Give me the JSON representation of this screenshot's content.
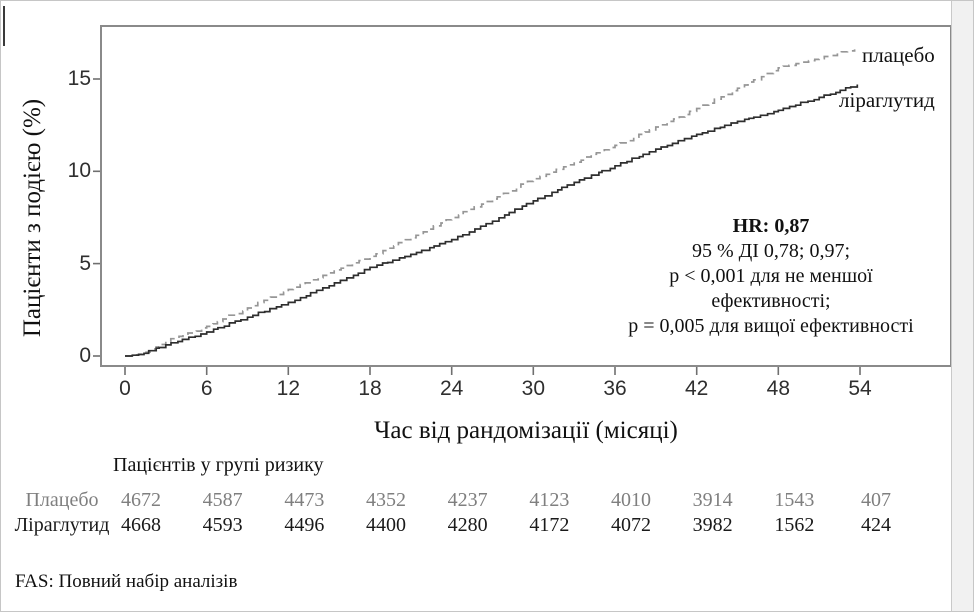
{
  "chart_data": {
    "type": "line",
    "title": "",
    "xlabel": "Час від рандомізації (місяці)",
    "ylabel": "Пацієнти з подією (%)",
    "xlim": [
      0,
      60.7
    ],
    "ylim": [
      0,
      17.9
    ],
    "x_ticks": [
      0,
      6,
      12,
      18,
      24,
      30,
      36,
      42,
      48,
      54
    ],
    "y_ticks": [
      0,
      5,
      10,
      15
    ],
    "grid": false,
    "legend_position": "right-of-curve-ends",
    "series": [
      {
        "name": "плацебо",
        "line_style": "dashed",
        "color": "#969696",
        "points": [
          [
            0,
            0
          ],
          [
            1,
            0.1
          ],
          [
            3,
            0.8
          ],
          [
            6,
            1.6
          ],
          [
            9,
            2.6
          ],
          [
            12,
            3.6
          ],
          [
            15,
            4.5
          ],
          [
            18,
            5.4
          ],
          [
            21,
            6.4
          ],
          [
            24,
            7.5
          ],
          [
            27,
            8.5
          ],
          [
            30,
            9.6
          ],
          [
            33,
            10.5
          ],
          [
            36,
            11.4
          ],
          [
            39,
            12.4
          ],
          [
            42,
            13.4
          ],
          [
            45,
            14.5
          ],
          [
            48,
            15.6
          ],
          [
            51,
            16.1
          ],
          [
            53.6,
            16.6
          ]
        ]
      },
      {
        "name": "ліраглутид",
        "line_style": "solid",
        "color": "#2e2e2e",
        "points": [
          [
            0,
            0
          ],
          [
            1,
            0.08
          ],
          [
            3,
            0.6
          ],
          [
            6,
            1.3
          ],
          [
            9,
            2.1
          ],
          [
            12,
            2.9
          ],
          [
            15,
            3.8
          ],
          [
            18,
            4.8
          ],
          [
            21,
            5.5
          ],
          [
            24,
            6.3
          ],
          [
            27,
            7.3
          ],
          [
            30,
            8.4
          ],
          [
            33,
            9.4
          ],
          [
            36,
            10.3
          ],
          [
            39,
            11.2
          ],
          [
            42,
            12.0
          ],
          [
            45,
            12.7
          ],
          [
            48,
            13.3
          ],
          [
            51,
            14.0
          ],
          [
            53.8,
            14.7
          ]
        ]
      }
    ]
  },
  "annotation": {
    "lines": [
      "HR: 0,87",
      "95 % ДІ 0,78; 0,97;",
      "p < 0,001 для не меншої",
      "ефективності;",
      "p = 0,005 для вищої ефективності"
    ]
  },
  "risk_table": {
    "title": "Пацієнтів у групі ризику",
    "rows": [
      {
        "label": "Плацебо",
        "color": "#7f7f7f",
        "counts": [
          "4672",
          "4587",
          "4473",
          "4352",
          "4237",
          "4123",
          "4010",
          "3914",
          "1543",
          "407"
        ]
      },
      {
        "label": "Ліраглутид",
        "color": "#1a1a1a",
        "counts": [
          "4668",
          "4593",
          "4496",
          "4400",
          "4280",
          "4172",
          "4072",
          "3982",
          "1562",
          "424"
        ]
      }
    ]
  },
  "footnote": "FAS: Повний набір аналізів",
  "colors": {
    "frame": "#8a8a8a",
    "tick": "#6f6f6f",
    "tick_label": "#2f2f2f",
    "placebo_curve": "#969696",
    "liraglutide_curve": "#2e2e2e",
    "gutter": "#f1f1f1"
  }
}
